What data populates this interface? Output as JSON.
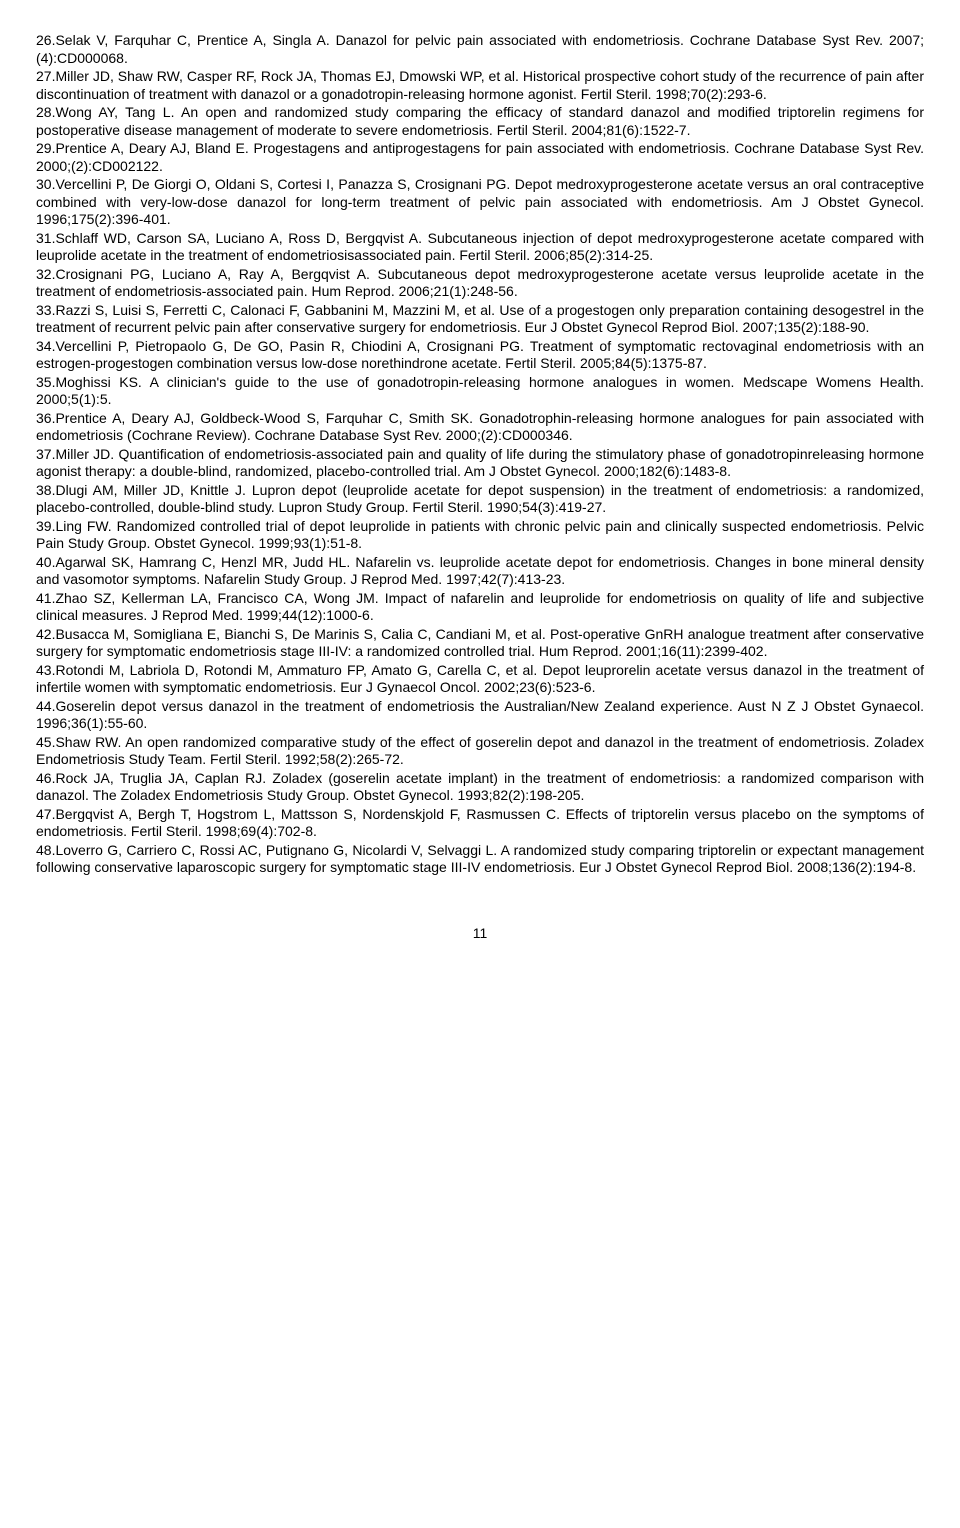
{
  "refs": [
    "26.Selak V, Farquhar C, Prentice A, Singla A. Danazol for pelvic pain associated with endometriosis. Cochrane Database Syst Rev. 2007;(4):CD000068.",
    "27.Miller JD, Shaw RW, Casper RF, Rock JA, Thomas EJ, Dmowski WP, et al. Historical prospective cohort study of the recurrence of pain after discontinuation of treatment with danazol or a gonadotropin-releasing hormone agonist. Fertil Steril. 1998;70(2):293-6.",
    "28.Wong AY, Tang L. An open and randomized study comparing the efficacy of standard danazol and modified triptorelin regimens for postoperative disease management of moderate to severe endometriosis. Fertil Steril. 2004;81(6):1522-7.",
    "29.Prentice A, Deary AJ, Bland E. Progestagens and antiprogestagens for pain associated with endometriosis. Cochrane Database Syst Rev. 2000;(2):CD002122.",
    "30.Vercellini P, De Giorgi O, Oldani S, Cortesi I, Panazza S, Crosignani PG. Depot medroxyprogesterone acetate versus an oral contraceptive combined with very-low-dose danazol for long-term treatment of pelvic pain associated with endometriosis. Am J Obstet Gynecol. 1996;175(2):396-401.",
    "31.Schlaff WD, Carson SA, Luciano A, Ross D, Bergqvist A. Subcutaneous injection of depot medroxyprogesterone acetate compared with leuprolide acetate in the treatment of endometriosisassociated pain. Fertil Steril. 2006;85(2):314-25.",
    "32.Crosignani PG, Luciano A, Ray A, Bergqvist A. Subcutaneous depot medroxyprogesterone acetate versus leuprolide acetate in the treatment of endometriosis-associated pain. Hum Reprod. 2006;21(1):248-56.",
    "33.Razzi S, Luisi S, Ferretti C, Calonaci F, Gabbanini M, Mazzini M, et al. Use of a progestogen only preparation containing desogestrel in the treatment of recurrent pelvic pain after conservative surgery for endometriosis. Eur J Obstet Gynecol Reprod Biol. 2007;135(2):188-90.",
    "34.Vercellini P, Pietropaolo G, De GO, Pasin R, Chiodini A, Crosignani PG. Treatment of symptomatic rectovaginal endometriosis with an estrogen-progestogen combination versus low-dose norethindrone acetate. Fertil Steril. 2005;84(5):1375-87.",
    "35.Moghissi KS. A clinician's guide to the use of gonadotropin-releasing hormone analogues in women. Medscape Womens Health. 2000;5(1):5.",
    "36.Prentice A, Deary AJ, Goldbeck-Wood S, Farquhar C, Smith SK. Gonadotrophin-releasing hormone analogues for pain associated with endometriosis (Cochrane Review). Cochrane Database Syst Rev. 2000;(2):CD000346.",
    "37.Miller JD. Quantification of endometriosis-associated pain and quality of life during the stimulatory phase of gonadotropinreleasing hormone agonist therapy: a double-blind, randomized, placebo-controlled trial. Am J Obstet Gynecol. 2000;182(6):1483-8.",
    "38.Dlugi AM, Miller JD, Knittle J. Lupron depot (leuprolide acetate for depot suspension) in the treatment of endometriosis: a randomized, placebo-controlled, double-blind study. Lupron Study Group. Fertil Steril. 1990;54(3):419-27.",
    "39.Ling FW. Randomized controlled trial of depot leuprolide in patients with chronic pelvic pain and clinically suspected endometriosis. Pelvic Pain Study Group. Obstet Gynecol. 1999;93(1):51-8.",
    "40.Agarwal SK, Hamrang C, Henzl MR, Judd HL. Nafarelin vs. leuprolide acetate depot for endometriosis. Changes in bone mineral density and vasomotor symptoms. Nafarelin Study Group. J Reprod Med. 1997;42(7):413-23.",
    "41.Zhao SZ, Kellerman LA, Francisco CA, Wong JM. Impact of nafarelin and leuprolide for endometriosis on quality of life and subjective clinical measures. J Reprod Med. 1999;44(12):1000-6.",
    "42.Busacca M, Somigliana E, Bianchi S, De Marinis S, Calia C, Candiani M, et al. Post-operative GnRH analogue treatment after conservative surgery for symptomatic endometriosis stage III-IV: a randomized controlled trial. Hum Reprod. 2001;16(11):2399-402.",
    "43.Rotondi M, Labriola D, Rotondi M, Ammaturo FP, Amato G, Carella C, et al. Depot leuprorelin acetate versus danazol in the treatment of infertile women with symptomatic endometriosis. Eur J Gynaecol Oncol. 2002;23(6):523-6.",
    "44.Goserelin depot versus danazol in the treatment of endometriosis the Australian/New Zealand experience. Aust N Z J Obstet Gynaecol. 1996;36(1):55-60.",
    "45.Shaw RW. An open randomized comparative study of the effect of goserelin depot and danazol in the treatment of endometriosis. Zoladex Endometriosis Study Team. Fertil Steril. 1992;58(2):265-72.",
    "46.Rock JA, Truglia JA, Caplan RJ. Zoladex (goserelin acetate implant) in the treatment of endometriosis: a randomized comparison with danazol. The Zoladex Endometriosis Study Group. Obstet Gynecol. 1993;82(2):198-205.",
    "47.Bergqvist A, Bergh T, Hogstrom L, Mattsson S, Nordenskjold F, Rasmussen C. Effects of triptorelin versus placebo on the symptoms of endometriosis. Fertil Steril. 1998;69(4):702-8.",
    "48.Loverro G, Carriero C, Rossi AC, Putignano G, Nicolardi V, Selvaggi L. A randomized study comparing triptorelin or expectant management following conservative laparoscopic surgery for symptomatic stage III-IV endometriosis. Eur J Obstet Gynecol Reprod Biol. 2008;136(2):194-8."
  ],
  "page_number": "11"
}
